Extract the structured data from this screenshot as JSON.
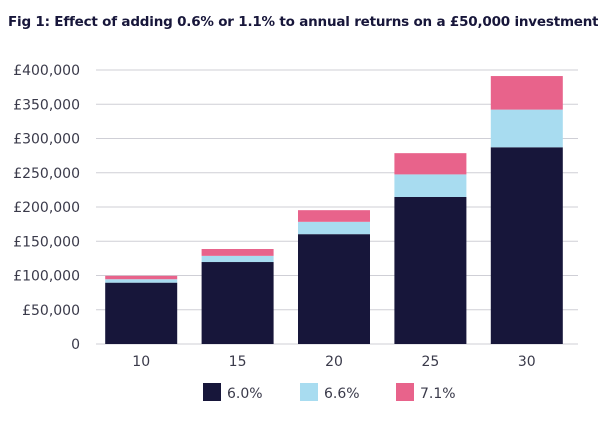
{
  "title": "Fig 1: Effect of adding 0.6% or 1.1% to annual returns on a £50,000 investment",
  "chart_data": {
    "type": "bar",
    "stacked": true,
    "title": "Fig 1: Effect of adding 0.6% or 1.1% to annual returns on a £50,000 investment",
    "xlabel": "",
    "ylabel": "",
    "categories": [
      "10",
      "15",
      "20",
      "25",
      "30"
    ],
    "ylim": [
      0,
      400000
    ],
    "yticks": [
      0,
      50000,
      100000,
      150000,
      200000,
      250000,
      300000,
      350000,
      400000
    ],
    "ytick_labels": [
      "0",
      "£50,000",
      "£100,000",
      "£150,000",
      "£200,000",
      "£250,000",
      "£300,000",
      "£350,000",
      "£400,000"
    ],
    "grid": true,
    "legend_position": "bottom",
    "series": [
      {
        "name": "6.0%",
        "color": "#17163a",
        "values": [
          89542,
          119674,
          160357,
          214594,
          287175
        ]
      },
      {
        "name": "6.6%",
        "color": "#a8dcf0",
        "values": [
          5000,
          9000,
          18000,
          33000,
          55000
        ]
      },
      {
        "name": "7.1%",
        "color": "#e8638b",
        "values": [
          5000,
          10000,
          17000,
          31000,
          49000
        ]
      }
    ]
  }
}
